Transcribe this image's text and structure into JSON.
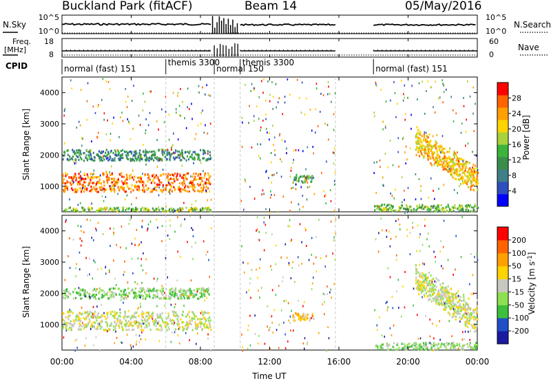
{
  "header": {
    "title": "Buckland Park (fitACF)",
    "beam": "Beam 14",
    "date": "05/May/2016"
  },
  "strips": {
    "nsky_label": "N.Sky",
    "nsky_ticks": [
      "10^5",
      "10^0"
    ],
    "nsearch_label": "N.Search",
    "nsearch_ticks": [
      "10^5",
      "10^0"
    ],
    "freq_label_line1": "Freq.",
    "freq_label_line2": "[MHz]",
    "freq_ticks": [
      "18",
      "8"
    ],
    "nave_label": "Nave",
    "nave_ticks": [
      "60",
      "0"
    ],
    "cpid_label": "CPID",
    "cpid_segments": [
      {
        "label": "normal (fast) 151",
        "start": 0.0
      },
      {
        "label": "themis 3300",
        "start": 6.0
      },
      {
        "label": "normal 150",
        "start": 8.8
      },
      {
        "label": "themis 3300",
        "start": 10.3
      },
      {
        "label": "normal (fast) 151",
        "start": 18.0
      }
    ]
  },
  "chart_data": [
    {
      "type": "heatmap",
      "parameter": "Power",
      "ylabel": "Slant Range [km]",
      "ylim": [
        180,
        4500
      ],
      "yticks": [
        "1000",
        "2000",
        "3000",
        "4000"
      ],
      "xlim": [
        0,
        24
      ],
      "colorbar": {
        "label": "Power [dB]",
        "range": [
          0,
          32
        ],
        "ticks": [
          "4",
          "8",
          "12",
          "16",
          "20",
          "24",
          "28"
        ],
        "colors": [
          "#0000ff",
          "#2d4fbf",
          "#3f7f88",
          "#3a8e4a",
          "#3cb43c",
          "#a8d23c",
          "#ffd400",
          "#ffa000",
          "#ff6400",
          "#ff0000"
        ]
      },
      "echo_regions": [
        {
          "name": "main echo band",
          "t_start": 0,
          "t_end": 8.6,
          "range_low": 850,
          "range_high": 1450,
          "level": 26
        },
        {
          "name": "upper echo band",
          "t_start": 0,
          "t_end": 8.6,
          "range_low": 1850,
          "range_high": 2200,
          "level": 10
        },
        {
          "name": "ground scatter near range",
          "t_start": 0,
          "t_end": 8.6,
          "range_low": 180,
          "range_high": 350,
          "level": 16
        },
        {
          "name": "late morning patch",
          "t_start": 13.3,
          "t_end": 14.5,
          "range_low": 1150,
          "range_high": 1400,
          "level": 13
        },
        {
          "name": "evening arc",
          "t_start": 20.4,
          "t_end": 24,
          "range_low": 900,
          "range_high": 2600,
          "level": 22
        },
        {
          "name": "evening ground scatter",
          "t_start": 18,
          "t_end": 24,
          "range_low": 180,
          "range_high": 450,
          "level": 15
        }
      ]
    },
    {
      "type": "heatmap",
      "parameter": "Velocity",
      "ylabel": "Slant Range [km]",
      "ylim": [
        180,
        4500
      ],
      "yticks": [
        "1000",
        "2000",
        "3000",
        "4000"
      ],
      "xlim": [
        0,
        24
      ],
      "xticks": [
        "00:00",
        "04:00",
        "08:00",
        "12:00",
        "16:00",
        "20:00",
        "00:00"
      ],
      "xlabel": "Time UT",
      "colorbar": {
        "label": "Velocity [m s^-1]",
        "ticks": [
          "200",
          "100",
          "50",
          "15",
          "-15",
          "-50",
          "-100",
          "-200"
        ],
        "colors": [
          "#1a1aa0",
          "#2050c8",
          "#3cc03c",
          "#8ee052",
          "#c8c8c0",
          "#ffd400",
          "#ffa000",
          "#ff6400",
          "#ff0000"
        ]
      },
      "echo_regions": [
        {
          "name": "main echo band",
          "t_start": 0,
          "t_end": 8.6,
          "range_low": 850,
          "range_high": 1450,
          "level": 0
        },
        {
          "name": "upper echo band",
          "t_start": 0,
          "t_end": 8.6,
          "range_low": 1850,
          "range_high": 2200,
          "level": -60
        },
        {
          "name": "late morning patch",
          "t_start": 13.3,
          "t_end": 14.5,
          "range_low": 1150,
          "range_high": 1400,
          "level": 70
        },
        {
          "name": "evening arc",
          "t_start": 20.4,
          "t_end": 24,
          "range_low": 900,
          "range_high": 2600,
          "level": 0
        },
        {
          "name": "evening ground scatter",
          "t_start": 18,
          "t_end": 24,
          "range_low": 180,
          "range_high": 450,
          "level": -60
        }
      ]
    }
  ]
}
